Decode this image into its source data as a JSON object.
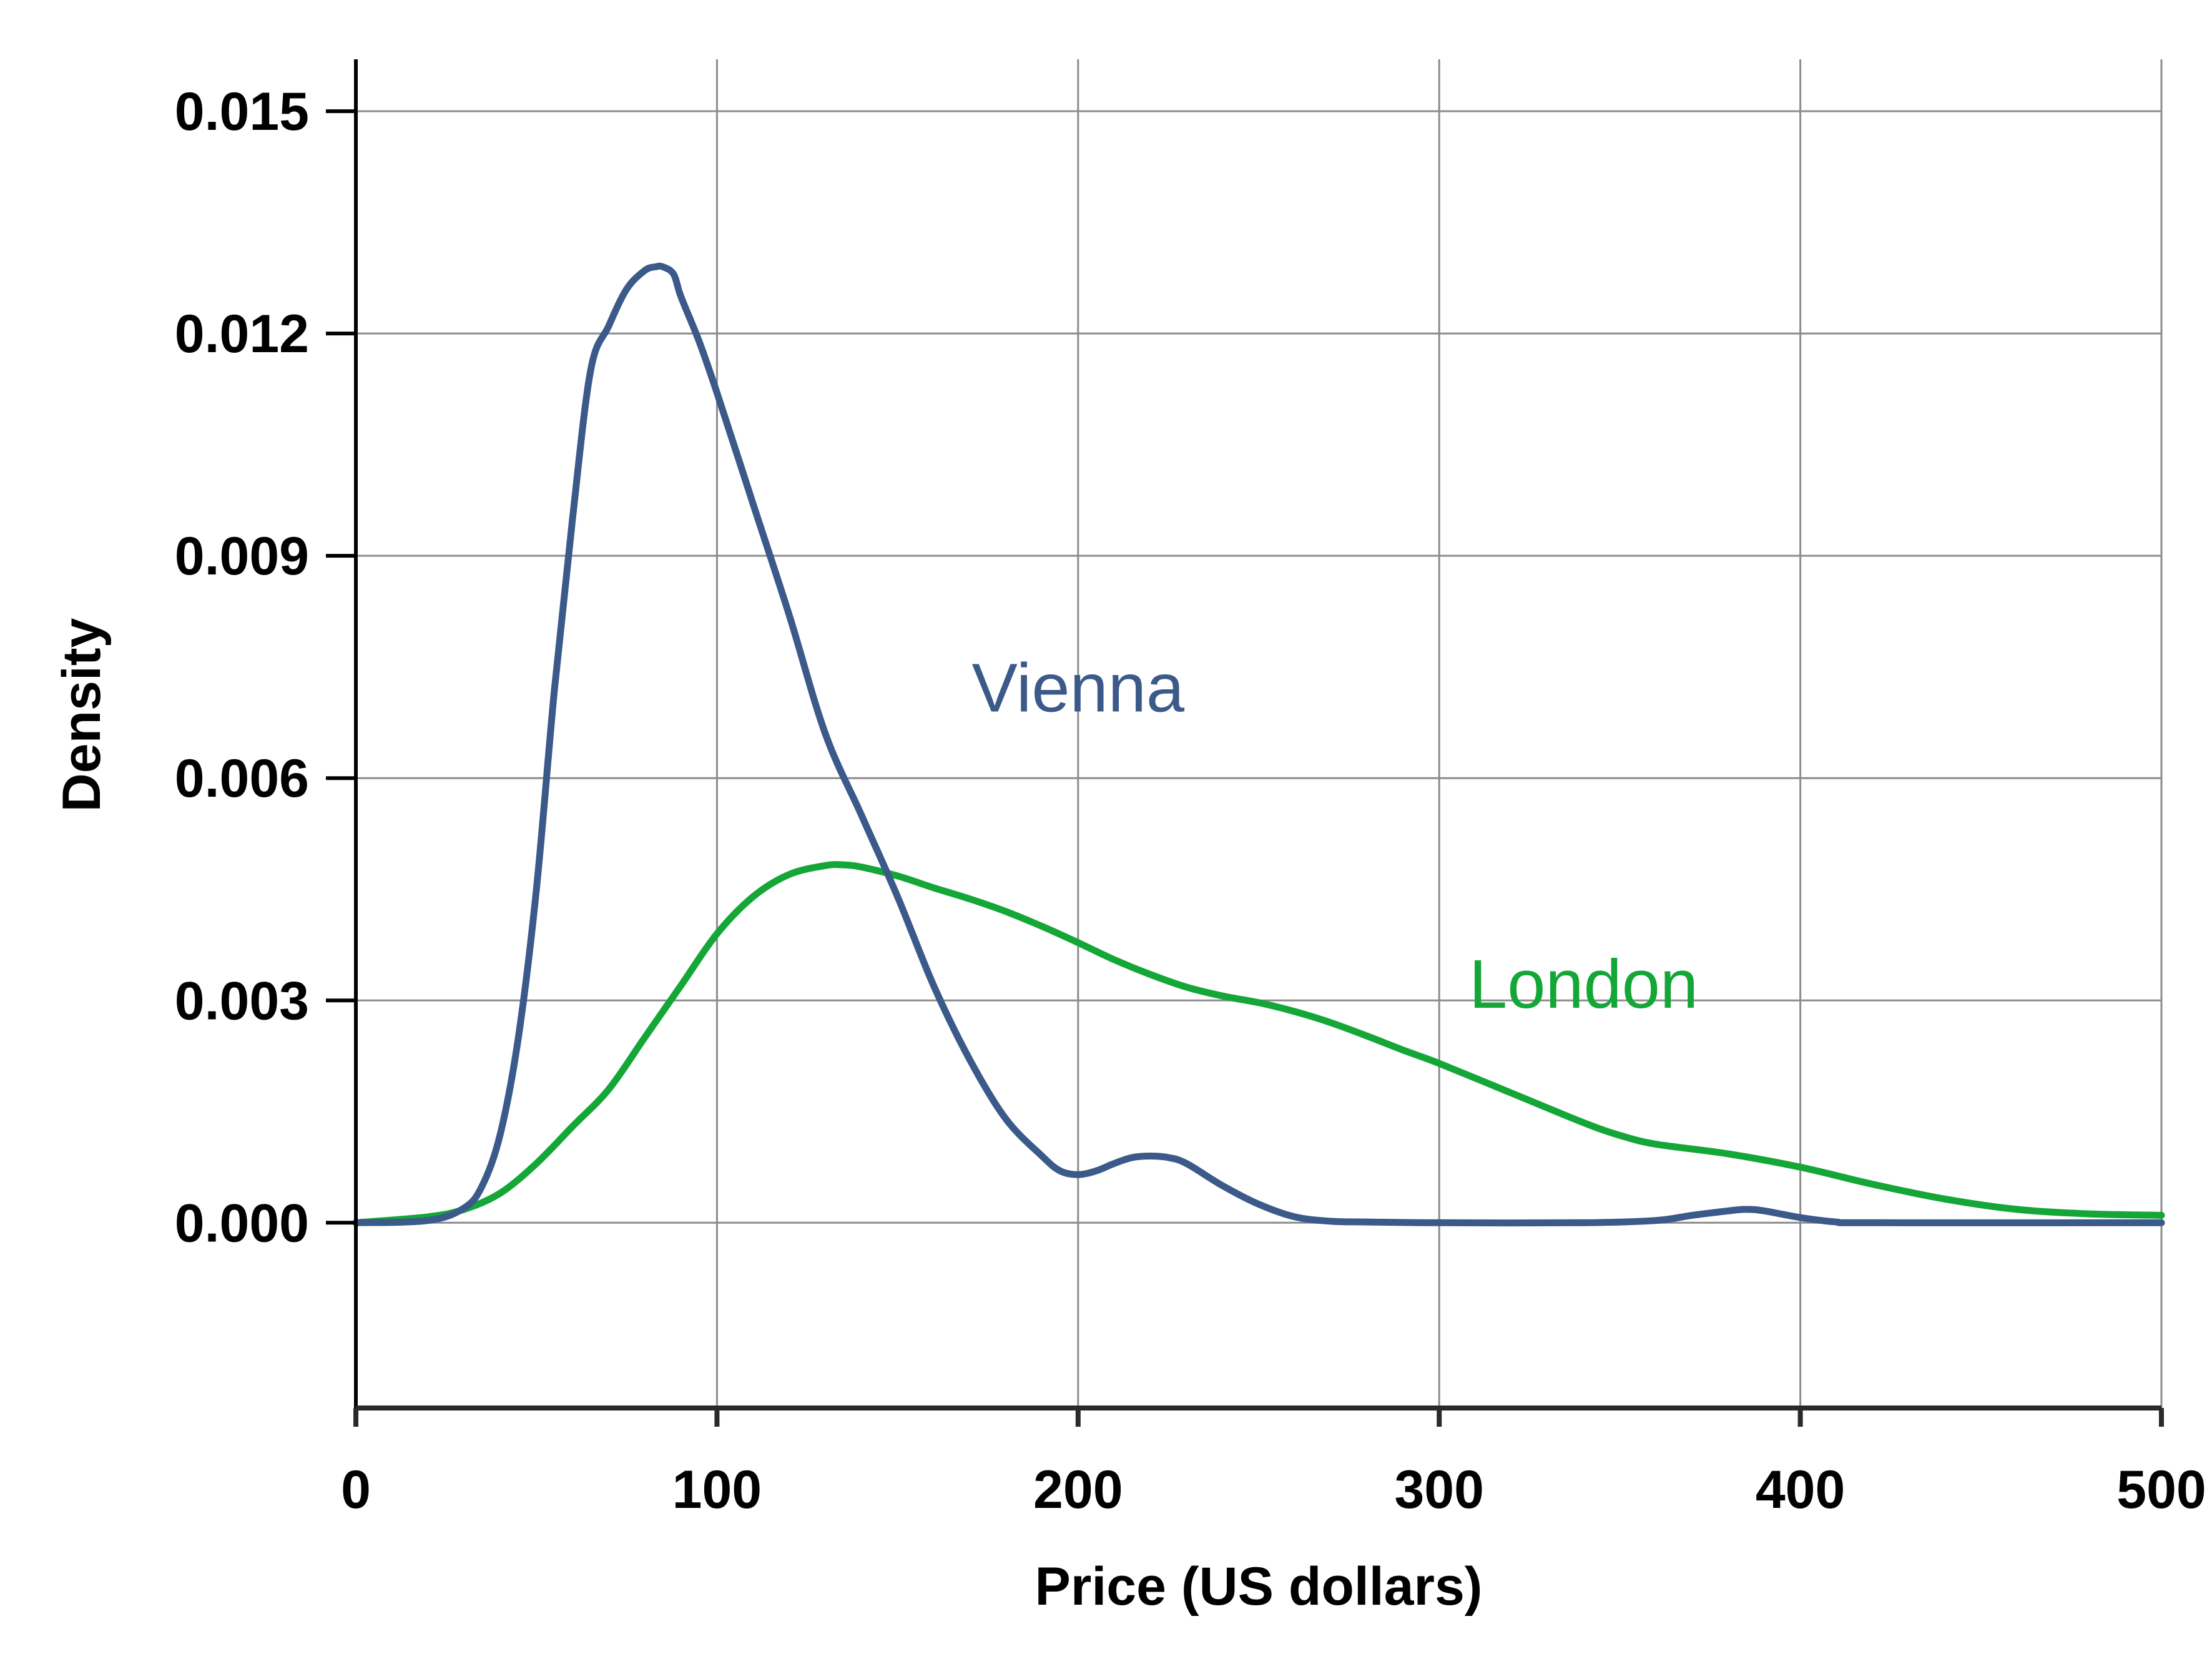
{
  "chart_data": {
    "type": "line",
    "title": "",
    "xlabel": "Price (US dollars)",
    "ylabel": "Density",
    "xlim": [
      0,
      500
    ],
    "ylim": [
      -0.0025,
      0.0157
    ],
    "x_ticks": [
      0,
      100,
      200,
      300,
      400,
      500
    ],
    "x_tick_labels": [
      "0",
      "100",
      "200",
      "300",
      "400",
      "500"
    ],
    "y_ticks": [
      0,
      0.003,
      0.006,
      0.009,
      0.012,
      0.015
    ],
    "y_tick_labels": [
      "0.000",
      "0.003",
      "0.006",
      "0.009",
      "0.012",
      "0.015"
    ],
    "grid": true,
    "legend": "none (series labelled directly on plot)",
    "series": [
      {
        "name": "Vienna",
        "color": "#3b5a8a",
        "x": [
          0,
          20,
          30,
          35,
          40,
          45,
          50,
          55,
          60,
          65,
          70,
          75,
          80,
          83,
          85,
          88,
          90,
          95,
          100,
          110,
          120,
          130,
          140,
          150,
          160,
          170,
          180,
          190,
          195,
          200,
          205,
          210,
          215,
          220,
          225,
          230,
          240,
          250,
          260,
          270,
          280,
          300,
          340,
          360,
          370,
          380,
          385,
          390,
          400,
          410,
          420,
          500
        ],
        "y": [
          0,
          3e-05,
          0.0002,
          0.0005,
          0.0012,
          0.0025,
          0.0045,
          0.0072,
          0.0095,
          0.0115,
          0.0121,
          0.0126,
          0.01285,
          0.0129,
          0.0129,
          0.0128,
          0.0125,
          0.0119,
          0.0112,
          0.0097,
          0.0082,
          0.0066,
          0.0055,
          0.0044,
          0.0032,
          0.0022,
          0.0014,
          0.0009,
          0.0007,
          0.00065,
          0.0007,
          0.0008,
          0.00088,
          0.0009,
          0.00088,
          0.0008,
          0.0005,
          0.00025,
          8e-05,
          2e-05,
          1e-05,
          0,
          0,
          3e-05,
          0.0001,
          0.00016,
          0.00018,
          0.00016,
          7e-05,
          1e-05,
          0,
          0
        ]
      },
      {
        "name": "London",
        "color": "#14a637",
        "x": [
          0,
          20,
          30,
          40,
          50,
          60,
          70,
          80,
          90,
          100,
          110,
          120,
          130,
          135,
          140,
          150,
          160,
          170,
          180,
          190,
          200,
          210,
          220,
          230,
          240,
          250,
          260,
          270,
          280,
          290,
          300,
          320,
          340,
          350,
          360,
          380,
          400,
          420,
          440,
          460,
          480,
          500
        ],
        "y": [
          0,
          8e-05,
          0.00018,
          0.0004,
          0.0008,
          0.0013,
          0.0018,
          0.0025,
          0.0032,
          0.0039,
          0.0044,
          0.0047,
          0.00482,
          0.00483,
          0.0048,
          0.00468,
          0.00452,
          0.00437,
          0.0042,
          0.004,
          0.00378,
          0.00355,
          0.00335,
          0.00318,
          0.00306,
          0.00297,
          0.00285,
          0.0027,
          0.00252,
          0.00233,
          0.00215,
          0.00175,
          0.00135,
          0.00118,
          0.00106,
          0.00093,
          0.00075,
          0.00052,
          0.00032,
          0.00018,
          0.00012,
          0.0001
        ]
      }
    ],
    "annotations": [
      {
        "text": "Vienna",
        "x": 200,
        "y": 0.0069,
        "color": "#3b5a8a"
      },
      {
        "text": "London",
        "x": 340,
        "y": 0.0029,
        "color": "#14a637"
      }
    ]
  }
}
